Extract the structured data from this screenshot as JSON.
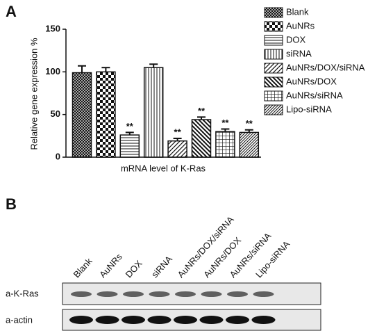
{
  "panels": {
    "a": "A",
    "b": "B"
  },
  "chart_data": {
    "type": "bar",
    "ylabel": "Relative gene expression %",
    "xlabel": "mRNA level of K-Ras",
    "ylim": [
      0,
      150
    ],
    "yticks": [
      0,
      50,
      100,
      150
    ],
    "series": [
      {
        "name": "Blank",
        "pattern": "crosshatch",
        "values": [
          99
        ],
        "errors": [
          8
        ]
      },
      {
        "name": "AuNRs",
        "pattern": "checker",
        "values": [
          100
        ],
        "errors": [
          5
        ]
      },
      {
        "name": "DOX",
        "pattern": "horizontal",
        "values": [
          26
        ],
        "errors": [
          3
        ],
        "annotation": "**"
      },
      {
        "name": "siRNA",
        "pattern": "vertical",
        "values": [
          105
        ],
        "errors": [
          4
        ]
      },
      {
        "name": "AuNRs/DOX/siRNA",
        "pattern": "diag-up",
        "values": [
          19
        ],
        "errors": [
          3
        ],
        "annotation": "**"
      },
      {
        "name": "AuNRs/DOX",
        "pattern": "diag-down",
        "values": [
          44
        ],
        "errors": [
          3
        ],
        "annotation": "**"
      },
      {
        "name": "AuNRs/siRNA",
        "pattern": "grid",
        "values": [
          30
        ],
        "errors": [
          3
        ],
        "annotation": "**"
      },
      {
        "name": "Lipo-siRNA",
        "pattern": "diag-dense",
        "values": [
          29
        ],
        "errors": [
          3
        ],
        "annotation": "**"
      }
    ]
  },
  "blot": {
    "lanes": [
      "Blank",
      "AuNRs",
      "DOX",
      "siRNA",
      "AuNRs/DOX/siRNA",
      "AuNRs/DOX",
      "AuNRs/siRNA",
      "Lipo-siRNA"
    ],
    "rows": [
      "a-K-Ras",
      "a-actin"
    ]
  }
}
